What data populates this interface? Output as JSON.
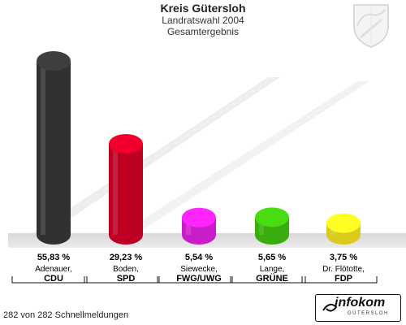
{
  "header": {
    "title": "Kreis Gütersloh",
    "subtitle": "Landratswahl 2004",
    "subtitle2": "Gesamtergebnis"
  },
  "colors": {
    "CDU": "#3a3a3a",
    "SPD": "#e0002a",
    "FWG/UWG": "#ee22ee",
    "GRÜNE": "#44cc11",
    "FDP": "#ffee22"
  },
  "chart_data": {
    "type": "bar",
    "categories": [
      "CDU",
      "SPD",
      "FWG/UWG",
      "GRÜNE",
      "FDP"
    ],
    "candidates": [
      "Adenauer,",
      "Boden,",
      "Siewecke,",
      "Lange,",
      "Dr. Flötotte,"
    ],
    "values": [
      55.83,
      29.23,
      5.54,
      5.65,
      3.75
    ],
    "value_labels": [
      "55,83 %",
      "29,23 %",
      "5,54 %",
      "5,65 %",
      "3,75 %"
    ],
    "ylim": [
      0,
      60
    ],
    "grid": false
  },
  "footer": {
    "status": "282 von 282 Schnellmeldungen"
  },
  "logo": {
    "name": "infokom",
    "sub": "GÜTERSLOH"
  }
}
